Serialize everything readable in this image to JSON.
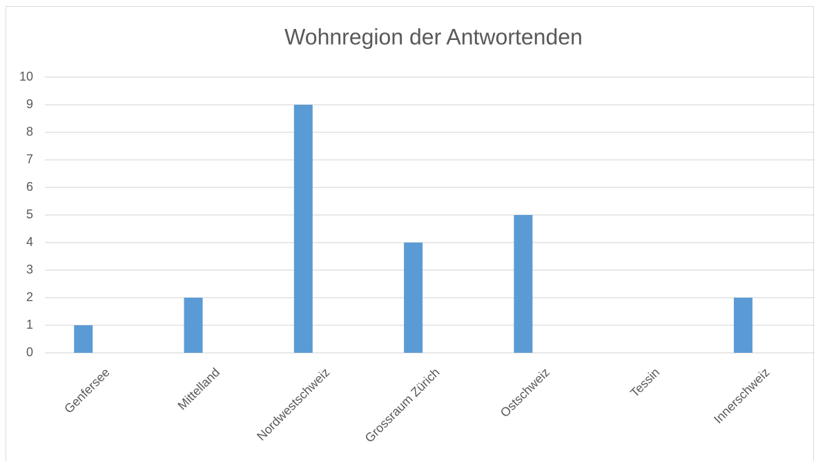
{
  "chart_data": {
    "type": "bar",
    "title": "Wohnregion der Antwortenden",
    "categories": [
      "Genfersee",
      "Mittelland",
      "Nordwestschweiz",
      "Grossraum Zürich",
      "Ostschweiz",
      "Tessin",
      "Innerschweiz"
    ],
    "values": [
      1,
      2,
      9,
      4,
      5,
      0,
      2
    ],
    "color": "#5b9bd5",
    "ylim": [
      0,
      10
    ],
    "yticks": [
      0,
      1,
      2,
      3,
      4,
      5,
      6,
      7,
      8,
      9,
      10
    ],
    "grid": true
  }
}
